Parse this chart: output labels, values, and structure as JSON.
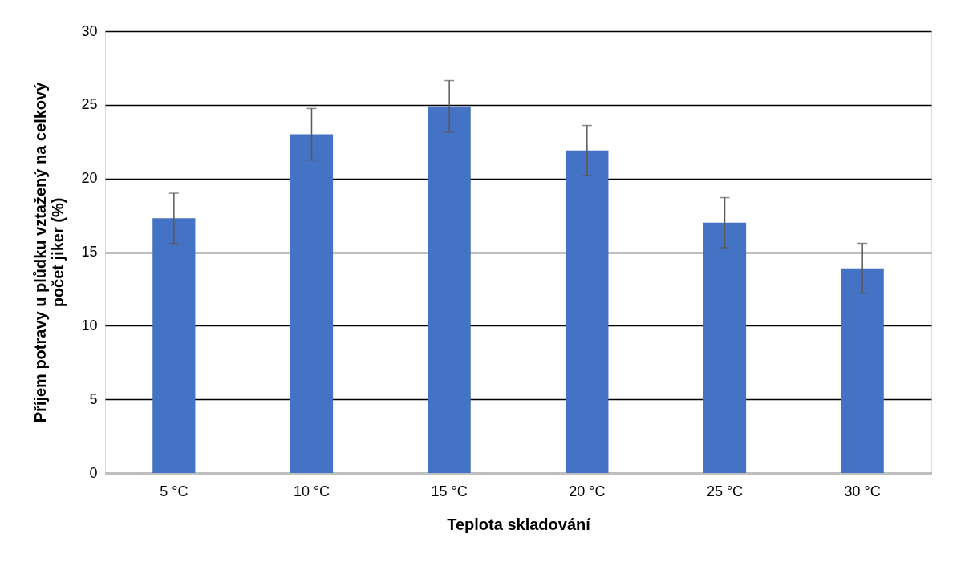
{
  "chart_data": {
    "type": "bar",
    "xlabel": "Teplota skladování",
    "ylabel": "Příjem potravy u plůdku vztažený na celkový\npočet jiker (%)",
    "categories": [
      "5 °C",
      "10 °C",
      "15 °C",
      "20 °C",
      "25 °C",
      "30 °C"
    ],
    "series": [
      {
        "color": "#4472c4",
        "values": [
          17.3,
          23.0,
          24.9,
          21.9,
          17.0,
          13.9
        ],
        "errors": [
          1.7,
          1.75,
          1.75,
          1.7,
          1.7,
          1.7
        ]
      }
    ],
    "ylim": [
      0,
      30
    ],
    "yticks": [
      0,
      5,
      10,
      15,
      20,
      25,
      30
    ],
    "grid": "y"
  }
}
